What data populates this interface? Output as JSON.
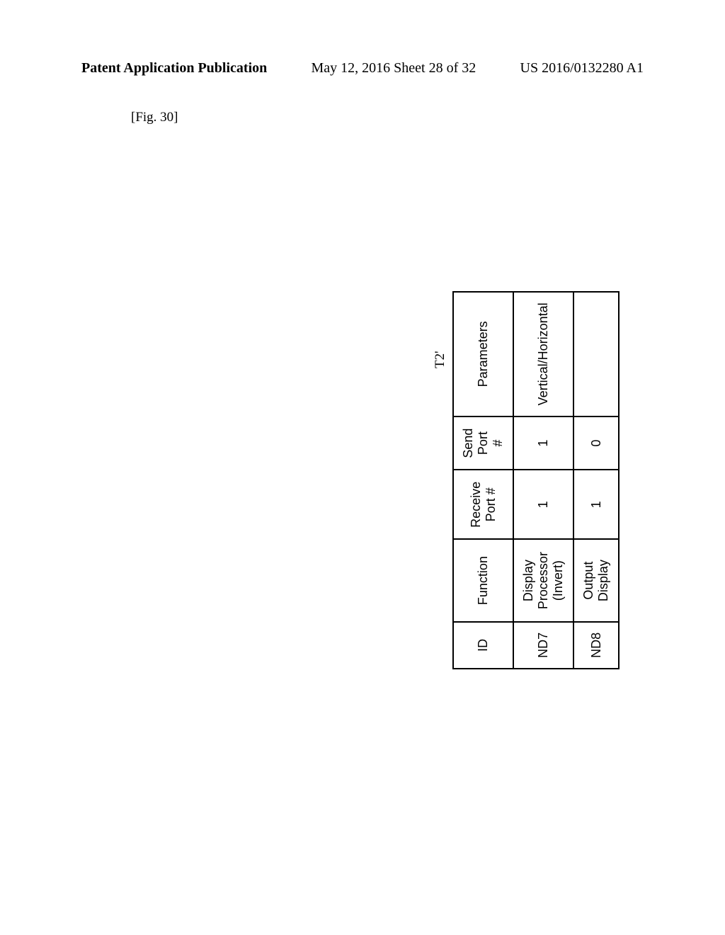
{
  "header": {
    "left": "Patent Application Publication",
    "center": "May 12, 2016  Sheet 28 of 32",
    "right": "US 2016/0132280 A1"
  },
  "figure_label": "[Fig. 30]",
  "table": {
    "label": "T2'",
    "columns": [
      "ID",
      "Function",
      "Receive Port #",
      "Send Port #",
      "Parameters"
    ],
    "rows": [
      [
        "ND7",
        "Display Processor (Invert)",
        "1",
        "1",
        "Vertical/Horizontal"
      ],
      [
        "ND8",
        "Output Display",
        "1",
        "0",
        ""
      ]
    ],
    "column_widths": [
      "70px",
      "230px",
      "160px",
      "150px",
      "190px"
    ],
    "border_color": "#000000",
    "background_color": "#ffffff",
    "header_fontsize": 18,
    "cell_fontsize": 18
  }
}
